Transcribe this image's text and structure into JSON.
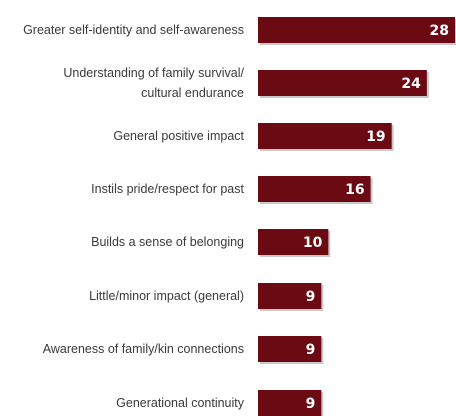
{
  "chart_data": {
    "type": "bar",
    "orientation": "horizontal",
    "categories": [
      [
        "Greater self-identity and self-awareness"
      ],
      [
        "Understanding of family survival/",
        "cultural endurance"
      ],
      [
        "General positive impact"
      ],
      [
        "Instils pride/respect for past"
      ],
      [
        "Builds a sense of belonging"
      ],
      [
        "Little/minor impact (general)"
      ],
      [
        "Awareness of family/kin connections"
      ],
      [
        "Generational continuity"
      ]
    ],
    "values": [
      28,
      24,
      19,
      16,
      10,
      9,
      9,
      9
    ],
    "xlim": [
      0,
      28
    ],
    "bar_color": "#6b0a12",
    "bar_shadow_color": "#c9c9c9",
    "value_label_color": "#ffffff",
    "title": "",
    "xlabel": "",
    "ylabel": "",
    "grid": false,
    "legend": false
  }
}
